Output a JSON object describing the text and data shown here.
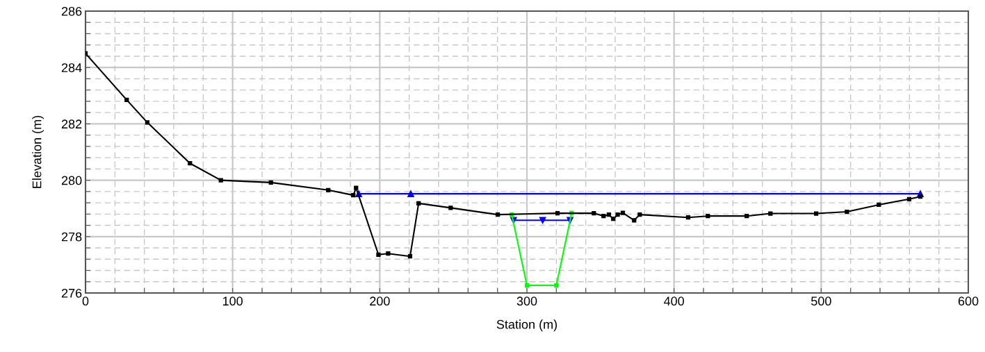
{
  "chart_data": {
    "type": "line",
    "xlabel": "Station (m)",
    "ylabel": "Elevation (m)",
    "xlim": [
      0,
      600
    ],
    "ylim": [
      276,
      286
    ],
    "xticks": [
      0,
      {
        "value": 20,
        "label": null
      },
      {
        "value": 40,
        "label": null
      },
      {
        "value": 60,
        "label": null
      },
      {
        "value": 80,
        "label": null
      },
      100,
      {
        "value": 120,
        "label": null
      },
      {
        "value": 140,
        "label": null
      },
      {
        "value": 160,
        "label": null
      },
      {
        "value": 180,
        "label": null
      },
      200,
      {
        "value": 220,
        "label": null
      },
      {
        "value": 240,
        "label": null
      },
      {
        "value": 260,
        "label": null
      },
      {
        "value": 280,
        "label": null
      },
      300,
      {
        "value": 320,
        "label": null
      },
      {
        "value": 340,
        "label": null
      },
      {
        "value": 360,
        "label": null
      },
      {
        "value": 380,
        "label": null
      },
      400,
      {
        "value": 420,
        "label": null
      },
      {
        "value": 440,
        "label": null
      },
      {
        "value": 460,
        "label": null
      },
      {
        "value": 480,
        "label": null
      },
      500,
      {
        "value": 520,
        "label": null
      },
      {
        "value": 540,
        "label": null
      },
      {
        "value": 560,
        "label": null
      },
      {
        "value": 580,
        "label": null
      },
      600
    ],
    "yticks": [
      276,
      {
        "value": 276.4,
        "label": null
      },
      {
        "value": 276.8,
        "label": null
      },
      {
        "value": 277.2,
        "label": null
      },
      {
        "value": 277.6,
        "label": null
      },
      278,
      {
        "value": 278.4,
        "label": null
      },
      {
        "value": 278.8,
        "label": null
      },
      {
        "value": 279.2,
        "label": null
      },
      {
        "value": 279.6,
        "label": null
      },
      280,
      {
        "value": 280.4,
        "label": null
      },
      {
        "value": 280.8,
        "label": null
      },
      {
        "value": 281.2,
        "label": null
      },
      {
        "value": 281.6,
        "label": null
      },
      282,
      {
        "value": 282.4,
        "label": null
      },
      {
        "value": 282.8,
        "label": null
      },
      {
        "value": 283.2,
        "label": null
      },
      {
        "value": 283.6,
        "label": null
      },
      284,
      {
        "value": 284.4,
        "label": null
      },
      {
        "value": 284.8,
        "label": null
      },
      {
        "value": 285.2,
        "label": null
      },
      {
        "value": 285.6,
        "label": null
      },
      286
    ],
    "grid": true,
    "legend": false,
    "line_style": "solid",
    "series": [
      {
        "color": "#00ff00",
        "marker": "square",
        "x": [
          289.7,
          300.0,
          320.0,
          330.4
        ],
        "values": [
          278.78,
          276.27,
          276.27,
          278.84
        ]
      },
      {
        "color": "#000000",
        "marker": "square",
        "x": [
          0,
          28,
          42,
          71,
          92,
          126,
          165,
          182.0,
          183.9,
          199.1,
          205.7,
          220.6,
          226.4,
          248.2,
          280.2,
          320.8,
          345.5,
          352.1,
          355.7,
          358.7,
          361.7,
          365.2,
          372.9,
          376.7,
          409.6,
          423.0,
          449.4,
          465.5,
          496.6,
          517.5,
          539.2,
          559.8,
          567.4
        ],
        "values": [
          284.5,
          282.85,
          282.05,
          280.6,
          280.0,
          279.92,
          279.65,
          279.47,
          279.73,
          277.36,
          277.4,
          277.3,
          279.18,
          279.02,
          278.78,
          278.83,
          278.83,
          278.73,
          278.78,
          278.63,
          278.78,
          278.84,
          278.58,
          278.78,
          278.68,
          278.73,
          278.73,
          278.82,
          278.82,
          278.88,
          279.13,
          279.33,
          279.42
        ]
      },
      {
        "color": "#0000ff",
        "marker": "triangle",
        "x": [
          185.7,
          221.1,
          567.4
        ],
        "values": [
          279.52,
          279.52,
          279.52
        ]
      },
      {
        "color": "#0000ff",
        "marker": "triangle_down",
        "x": [
          290.9,
          310.7,
          329.3
        ],
        "values": [
          278.58,
          278.58,
          278.58
        ]
      }
    ]
  }
}
